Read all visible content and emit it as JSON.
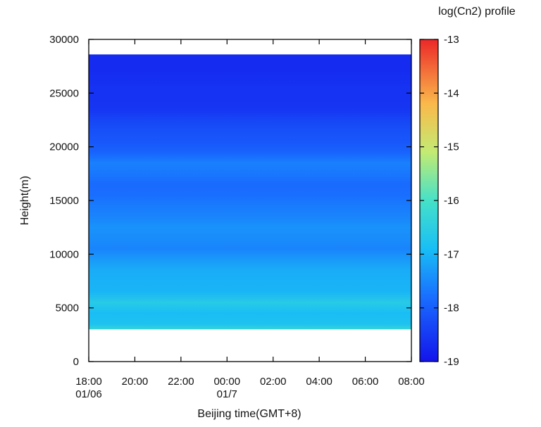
{
  "chart_data": {
    "type": "heatmap",
    "title": "",
    "xlabel": "Beijing time(GMT+8)",
    "ylabel": "Height(m)",
    "colorbar_title": "log(Cn2) profile",
    "xlim": [
      0,
      14
    ],
    "ylim": [
      0,
      30000
    ],
    "x_ticks": [
      {
        "value": 0,
        "label": "18:00",
        "sub": "01/06"
      },
      {
        "value": 2,
        "label": "20:00",
        "sub": ""
      },
      {
        "value": 4,
        "label": "22:00",
        "sub": ""
      },
      {
        "value": 6,
        "label": "00:00",
        "sub": "01/7"
      },
      {
        "value": 8,
        "label": "02:00",
        "sub": ""
      },
      {
        "value": 10,
        "label": "04:00",
        "sub": ""
      },
      {
        "value": 12,
        "label": "06:00",
        "sub": ""
      },
      {
        "value": 14,
        "label": "08:00",
        "sub": ""
      }
    ],
    "y_ticks": [
      0,
      5000,
      10000,
      15000,
      20000,
      25000,
      30000
    ],
    "colorbar_range": [
      -19,
      -13
    ],
    "colorbar_ticks": [
      -19,
      -18,
      -17,
      -16,
      -15,
      -14,
      -13
    ],
    "data_extent_height": [
      3000,
      28600
    ],
    "profile": [
      {
        "height": 3000,
        "value": -16.3
      },
      {
        "height": 3500,
        "value": -16.8
      },
      {
        "height": 4500,
        "value": -16.9
      },
      {
        "height": 5500,
        "value": -16.6
      },
      {
        "height": 6500,
        "value": -17.0
      },
      {
        "height": 7500,
        "value": -17.05
      },
      {
        "height": 8500,
        "value": -17.1
      },
      {
        "height": 9500,
        "value": -17.3
      },
      {
        "height": 10500,
        "value": -17.55
      },
      {
        "height": 11500,
        "value": -17.45
      },
      {
        "height": 12500,
        "value": -17.4
      },
      {
        "height": 13500,
        "value": -17.55
      },
      {
        "height": 14500,
        "value": -17.65
      },
      {
        "height": 15500,
        "value": -17.8
      },
      {
        "height": 16500,
        "value": -17.85
      },
      {
        "height": 17500,
        "value": -17.7
      },
      {
        "height": 18500,
        "value": -17.6
      },
      {
        "height": 19500,
        "value": -17.95
      },
      {
        "height": 20500,
        "value": -18.1
      },
      {
        "height": 21500,
        "value": -18.2
      },
      {
        "height": 22500,
        "value": -18.35
      },
      {
        "height": 23500,
        "value": -18.55
      },
      {
        "height": 24500,
        "value": -18.6
      },
      {
        "height": 25500,
        "value": -18.6
      },
      {
        "height": 26500,
        "value": -18.65
      },
      {
        "height": 27500,
        "value": -18.7
      },
      {
        "height": 28600,
        "value": -18.7
      }
    ]
  }
}
